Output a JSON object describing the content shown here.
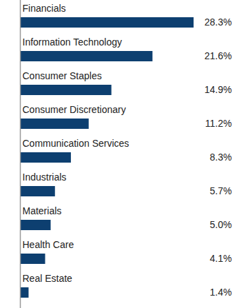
{
  "chart_data": {
    "type": "bar",
    "orientation": "horizontal",
    "categories": [
      "Financials",
      "Information Technology",
      "Consumer Staples",
      "Consumer Discretionary",
      "Communication Services",
      "Industrials",
      "Materials",
      "Health Care",
      "Real Estate"
    ],
    "values": [
      28.3,
      21.6,
      14.9,
      11.2,
      8.3,
      5.7,
      5.0,
      4.1,
      1.4
    ],
    "value_labels": [
      "28.3%",
      "21.6%",
      "14.9%",
      "11.2%",
      "8.3%",
      "5.7%",
      "5.0%",
      "4.1%",
      "1.4%"
    ],
    "color": "#0d3f70",
    "xlim": [
      0,
      28.3
    ],
    "data_labels": true,
    "tick_labels": false,
    "grid": false
  }
}
